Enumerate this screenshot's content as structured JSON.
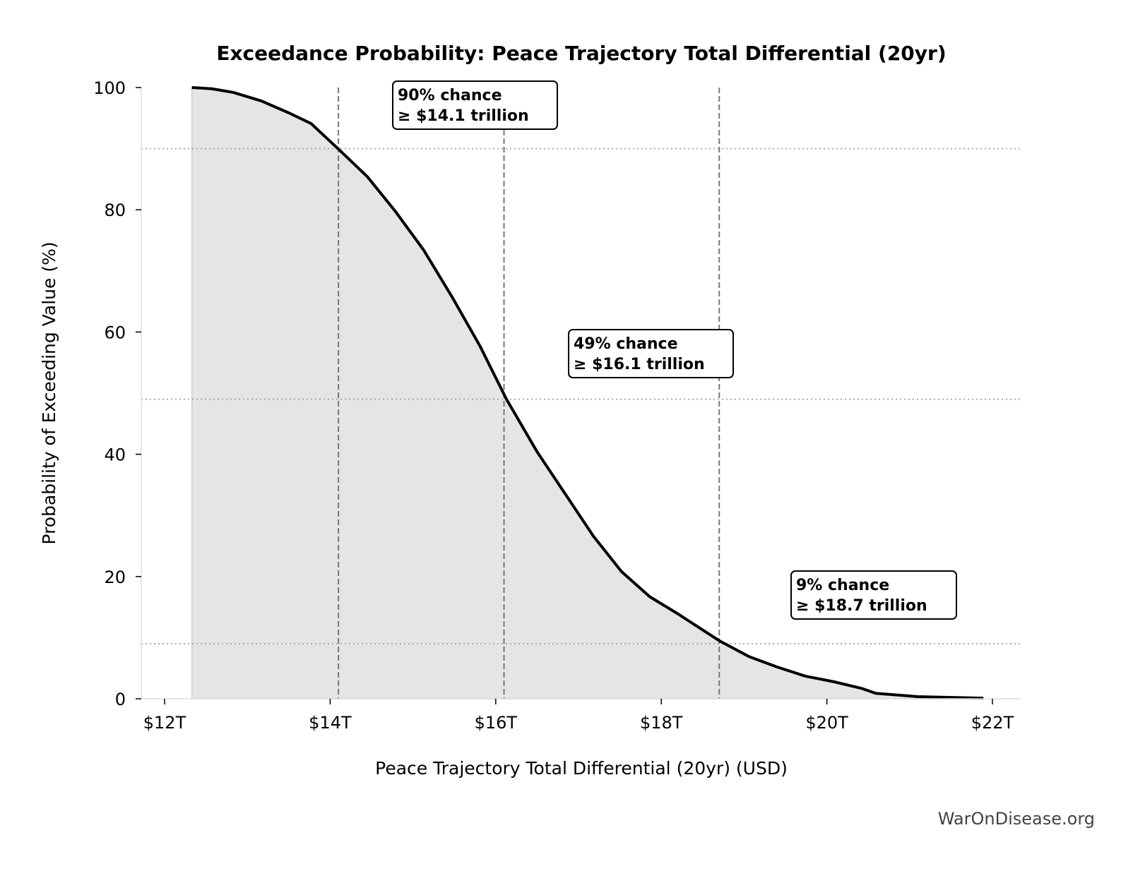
{
  "chart_data": {
    "type": "area",
    "title": "Exceedance Probability: Peace Trajectory Total Differential (20yr)",
    "xlabel": "Peace Trajectory Total Differential (20yr) (USD)",
    "ylabel": "Probability of Exceeding Value (%)",
    "xlim": [
      11.72,
      22.35
    ],
    "ylim": [
      0,
      100
    ],
    "xticks": [
      12,
      14,
      16,
      18,
      20,
      22
    ],
    "xtick_labels": [
      "$12T",
      "$14T",
      "$16T",
      "$18T",
      "$20T",
      "$22T"
    ],
    "yticks": [
      0,
      20,
      40,
      60,
      80,
      100
    ],
    "ytick_labels": [
      "0",
      "20",
      "40",
      "60",
      "80",
      "100"
    ],
    "series": [
      {
        "name": "Exceedance curve",
        "x": [
          12.33,
          12.57,
          12.83,
          13.17,
          13.51,
          13.77,
          14.11,
          14.45,
          14.79,
          15.13,
          15.47,
          15.81,
          16.13,
          16.5,
          16.84,
          17.18,
          17.52,
          17.86,
          18.2,
          18.7,
          19.06,
          19.4,
          19.74,
          20.08,
          20.42,
          20.59,
          21.1,
          21.89
        ],
        "y": [
          100,
          99.8,
          99.2,
          97.8,
          95.8,
          94.1,
          89.8,
          85.4,
          79.7,
          73.4,
          65.8,
          57.7,
          49,
          40.4,
          33.5,
          26.6,
          20.8,
          16.7,
          13.9,
          9.5,
          6.9,
          5.2,
          3.7,
          2.8,
          1.7,
          0.9,
          0.35,
          0.1
        ]
      }
    ],
    "reference_lines": [
      {
        "x": 14.1,
        "y": 90
      },
      {
        "x": 16.1,
        "y": 49
      },
      {
        "x": 18.7,
        "y": 9
      }
    ],
    "annotations": [
      {
        "line1": "90% chance",
        "line2": "≥ $14.1 trillion"
      },
      {
        "line1": "49% chance",
        "line2": "≥ $16.1 trillion"
      },
      {
        "line1": "9% chance",
        "line2": "≥ $18.7 trillion"
      }
    ],
    "colors": {
      "curve": "#000000",
      "fill": "#e5e5e5",
      "ref": "#777777",
      "hgrid": "#aaaaaa"
    },
    "grid": false,
    "watermark": "WarOnDisease.org"
  }
}
